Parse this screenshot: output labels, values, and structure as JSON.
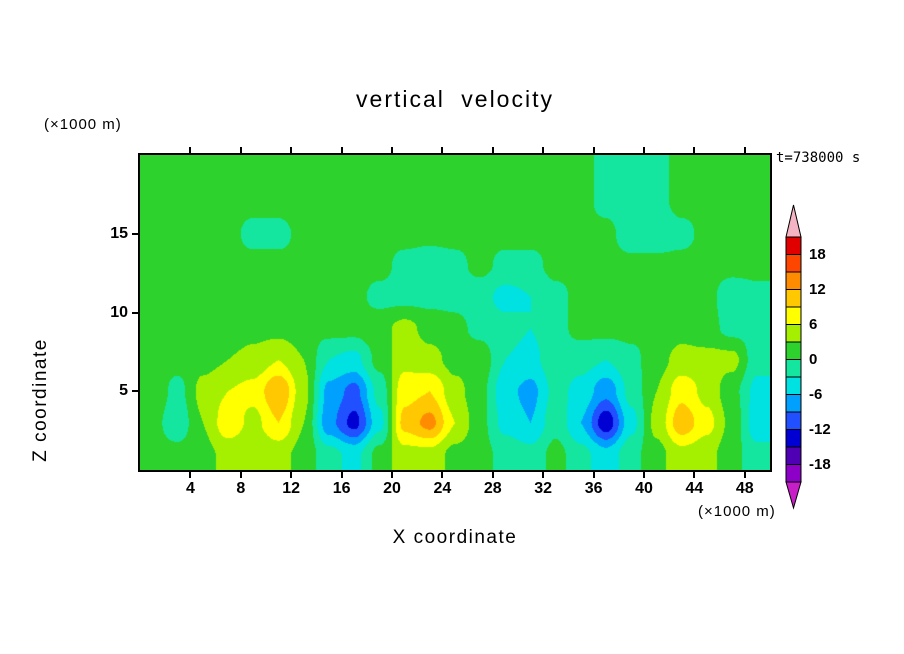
{
  "page": {
    "background": "#ffffff"
  },
  "annotations": {
    "y_axis_units": "(×1000 m)",
    "x_axis_units": "(×1000 m)",
    "timestamp": "t=738000 s"
  },
  "chart_data": {
    "type": "filled_contour",
    "title": "vertical velocity",
    "xlabel": "X coordinate",
    "ylabel": "Z coordinate",
    "x_ticks": [
      4,
      8,
      12,
      16,
      20,
      24,
      28,
      32,
      36,
      40,
      44,
      48
    ],
    "y_ticks": [
      5,
      10,
      15
    ],
    "x_range": [
      0,
      50
    ],
    "z_range": [
      0,
      20
    ],
    "axis_units_scale": "×1000 m",
    "contour_interval": 3,
    "colorbar": {
      "labels": [
        18,
        12,
        6,
        0,
        -6,
        -12,
        -18
      ],
      "level_min": -21,
      "level_max": 21,
      "step": 3,
      "band_colors_top_down": [
        "#e10000",
        "#ff4600",
        "#ff8c00",
        "#ffc800",
        "#ffff00",
        "#a5f000",
        "#2dd22d",
        "#14e6a0",
        "#00e1e1",
        "#00a0ff",
        "#2050ff",
        "#0000d2",
        "#5000b4",
        "#8c00c8"
      ],
      "arrow_top_color": "#f5b4c3",
      "arrow_bottom_color": "#c81ec8"
    },
    "grid": {
      "comment": "estimated vertical velocity field, rows bottom-up at z values, columns at x values",
      "x": [
        1,
        3,
        5,
        7,
        9,
        11,
        13,
        15,
        17,
        19,
        21,
        23,
        25,
        27,
        29,
        31,
        33,
        35,
        37,
        39,
        41,
        43,
        45,
        47,
        49
      ],
      "z": [
        1,
        3,
        5,
        7,
        9,
        11,
        13,
        15,
        17
      ],
      "values": [
        [
          1,
          1,
          2,
          4,
          3,
          4,
          2,
          -2,
          -4,
          1,
          5,
          5,
          2,
          1,
          -1,
          -2,
          1,
          -2,
          -5,
          -1,
          2,
          5,
          4,
          1,
          -2
        ],
        [
          1,
          -2,
          3,
          8,
          5,
          9,
          3,
          -8,
          -13,
          -4,
          10,
          13,
          6,
          1,
          -4,
          -6,
          -1,
          -6,
          -14,
          -4,
          4,
          11,
          7,
          2,
          -5
        ],
        [
          2,
          -1,
          4,
          6,
          7,
          12,
          4,
          -7,
          -10,
          -2,
          8,
          9,
          4,
          1,
          -5,
          -7,
          -2,
          -4,
          -8,
          -2,
          3,
          8,
          5,
          1,
          -4
        ],
        [
          1,
          1,
          2,
          3,
          4,
          6,
          3,
          -3,
          -4,
          1,
          5,
          4,
          2,
          2,
          -3,
          -4,
          -1,
          -2,
          -3,
          -1,
          2,
          4,
          4,
          4,
          -2
        ],
        [
          1,
          1,
          1,
          1,
          2,
          2,
          1,
          1,
          1,
          2,
          4,
          2,
          1,
          -1,
          -2,
          -3,
          -1,
          1,
          1,
          1,
          1,
          2,
          1,
          -1,
          -1
        ],
        [
          1,
          1,
          1,
          1,
          1,
          1,
          1,
          1,
          1,
          -1,
          -1,
          -1,
          -1,
          -2,
          -4,
          -3,
          -1,
          1,
          1,
          1,
          1,
          1,
          1,
          -2,
          -1
        ],
        [
          1,
          1,
          1,
          1,
          1,
          1,
          1,
          1,
          1,
          1,
          -1,
          -2,
          -1,
          1,
          -1,
          -1,
          1,
          1,
          1,
          1,
          1,
          1,
          1,
          1,
          1
        ],
        [
          1,
          2,
          1,
          1,
          -1,
          -1,
          1,
          1,
          1,
          1,
          1,
          1,
          1,
          1,
          1,
          1,
          1,
          1,
          1,
          -2,
          -2,
          -1,
          1,
          1,
          1
        ],
        [
          1,
          1,
          1,
          1,
          1,
          1,
          2,
          1,
          1,
          1,
          1,
          1,
          1,
          1,
          1,
          1,
          1,
          1,
          -1,
          -2,
          -1,
          1,
          1,
          1,
          1
        ]
      ],
      "units": "m/s"
    }
  }
}
